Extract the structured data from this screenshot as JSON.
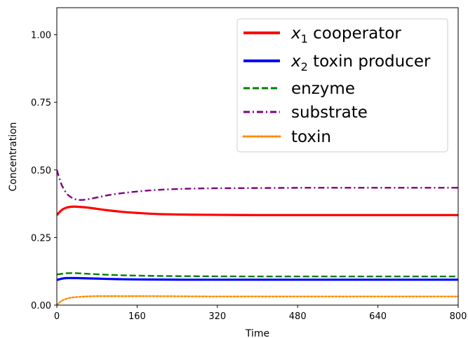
{
  "chart_data": {
    "type": "line",
    "xlabel": "Time",
    "ylabel": "Concentration",
    "xlim": [
      0,
      800
    ],
    "ylim": [
      0,
      1.1
    ],
    "x_ticks": [
      0,
      160,
      320,
      480,
      640,
      800
    ],
    "x_tick_labels": [
      "0",
      "160",
      "320",
      "480",
      "640",
      "800"
    ],
    "y_ticks": [
      0,
      0.25,
      0.5,
      0.75,
      1.0
    ],
    "y_tick_labels": [
      "0.00",
      "0.25",
      "0.50",
      "0.75",
      "1.00"
    ],
    "grid": false,
    "legend_position": "top-right",
    "series": [
      {
        "name": "x1 cooperator",
        "legend_label": {
          "var": "x",
          "sub": "1",
          "rest": " cooperator"
        },
        "color": "#ff0000",
        "style": "solid",
        "x": [
          0,
          10,
          20,
          30,
          40,
          60,
          80,
          100,
          130,
          160,
          200,
          250,
          300,
          400,
          500,
          600,
          700,
          800
        ],
        "values": [
          0.333,
          0.352,
          0.361,
          0.364,
          0.364,
          0.361,
          0.356,
          0.351,
          0.345,
          0.341,
          0.337,
          0.335,
          0.334,
          0.333,
          0.333,
          0.333,
          0.333,
          0.333
        ]
      },
      {
        "name": "x2 toxin producer",
        "legend_label": {
          "var": "x",
          "sub": "2",
          "rest": " toxin producer"
        },
        "color": "#0000ff",
        "style": "solid",
        "x": [
          0,
          10,
          20,
          40,
          60,
          80,
          120,
          160,
          250,
          400,
          600,
          800
        ],
        "values": [
          0.093,
          0.098,
          0.1,
          0.1,
          0.099,
          0.098,
          0.096,
          0.095,
          0.094,
          0.094,
          0.094,
          0.094
        ]
      },
      {
        "name": "enzyme",
        "legend_label": {
          "var": "",
          "sub": "",
          "rest": "enzyme"
        },
        "color": "#008000",
        "style": "dashed",
        "x": [
          0,
          10,
          20,
          40,
          60,
          80,
          120,
          160,
          250,
          400,
          600,
          800
        ],
        "values": [
          0.113,
          0.116,
          0.118,
          0.118,
          0.116,
          0.114,
          0.111,
          0.109,
          0.107,
          0.106,
          0.106,
          0.106
        ]
      },
      {
        "name": "substrate",
        "legend_label": {
          "var": "",
          "sub": "",
          "rest": "substrate"
        },
        "color": "#800080",
        "style": "dashdot",
        "x": [
          0,
          5,
          10,
          20,
          30,
          40,
          50,
          60,
          80,
          100,
          130,
          160,
          200,
          250,
          300,
          400,
          500,
          600,
          700,
          800
        ],
        "values": [
          0.5,
          0.47,
          0.443,
          0.412,
          0.397,
          0.39,
          0.389,
          0.391,
          0.398,
          0.406,
          0.414,
          0.42,
          0.426,
          0.43,
          0.432,
          0.433,
          0.434,
          0.434,
          0.434,
          0.434
        ]
      },
      {
        "name": "toxin",
        "legend_label": {
          "var": "",
          "sub": "",
          "rest": "toxin"
        },
        "color": "#ff8c00",
        "style": "dotted",
        "x": [
          0,
          5,
          10,
          20,
          30,
          40,
          60,
          80,
          100,
          150,
          200,
          300,
          400,
          600,
          800
        ],
        "values": [
          0.0,
          0.009,
          0.016,
          0.024,
          0.028,
          0.03,
          0.032,
          0.033,
          0.033,
          0.033,
          0.033,
          0.032,
          0.032,
          0.032,
          0.032
        ]
      }
    ]
  }
}
